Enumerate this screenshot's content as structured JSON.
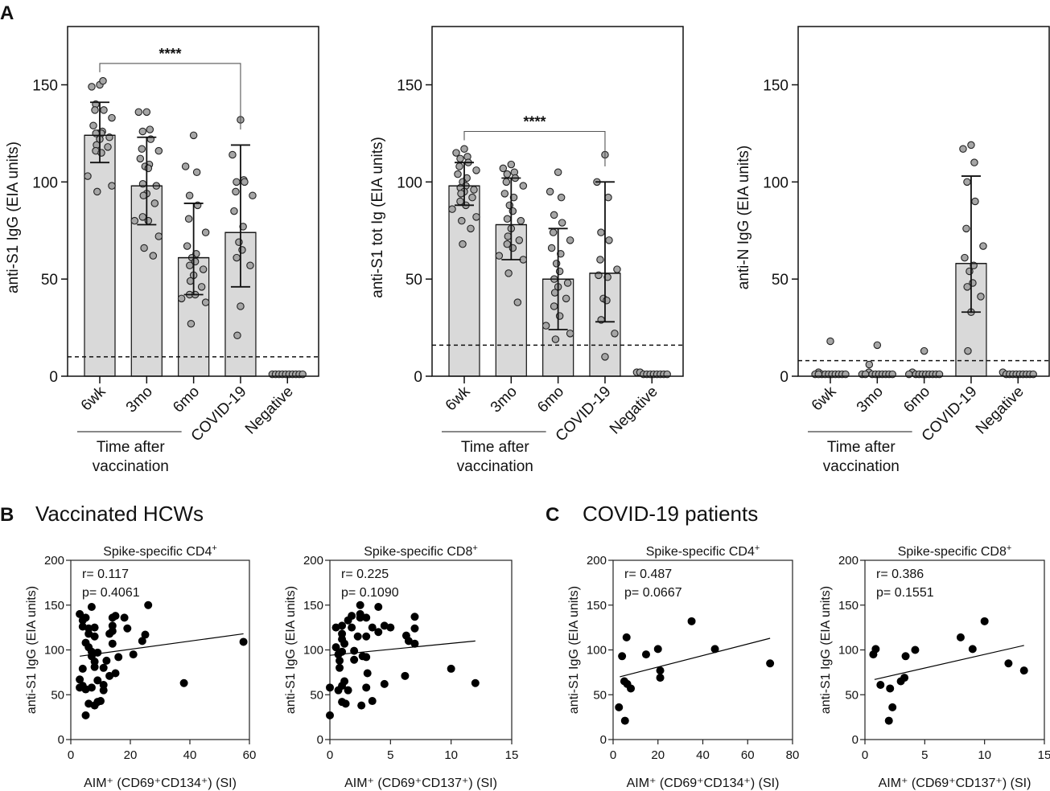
{
  "panel_labels": {
    "a": "A",
    "b": "B",
    "c": "C"
  },
  "panel_titles": {
    "b": "Vaccinated HCWs",
    "c": "COVID-19 patients"
  },
  "group_label_line1": "Time after",
  "group_label_line2": "vaccination",
  "colors": {
    "bar": "#d9d9d9",
    "dot": "#a6a6a6",
    "scatter_dot": "#000000",
    "line": "#000000"
  },
  "chart_data": [
    {
      "type": "bar",
      "ylabel": "anti-S1 IgG (EIA units)",
      "ylim": [
        0,
        180
      ],
      "yticks": [
        0,
        50,
        100,
        150
      ],
      "categories": [
        "6wk",
        "3mo",
        "6mo",
        "COVID-19",
        "Negative"
      ],
      "means": [
        124,
        98,
        61,
        74,
        1
      ],
      "error_low": [
        110,
        78,
        42,
        46,
        null
      ],
      "error_high": [
        141,
        123,
        89,
        119,
        null
      ],
      "cutoff": 10,
      "significance": {
        "from": "6wk",
        "to": "COVID-19",
        "label": "****"
      },
      "points": [
        [
          150,
          149,
          152,
          140,
          137,
          137,
          133,
          129,
          126,
          125,
          125,
          125,
          123,
          122,
          119,
          118,
          116,
          115,
          103,
          98,
          95
        ],
        [
          136,
          136,
          127,
          126,
          122,
          117,
          116,
          112,
          109,
          108,
          107,
          99,
          98,
          94,
          93,
          89,
          82,
          80,
          80,
          72,
          66,
          62
        ],
        [
          124,
          108,
          105,
          93,
          88,
          81,
          74,
          67,
          63,
          61,
          59,
          57,
          55,
          52,
          49,
          46,
          42,
          42,
          40,
          38,
          27
        ],
        [
          132,
          114,
          101,
          100,
          100,
          95,
          93,
          85,
          77,
          69,
          65,
          61,
          57,
          36,
          21
        ],
        [
          1,
          1,
          1,
          1,
          1,
          1,
          1,
          1,
          1,
          1
        ]
      ]
    },
    {
      "type": "bar",
      "ylabel": "anti-S1 tot Ig (EIA units)",
      "ylim": [
        0,
        180
      ],
      "yticks": [
        0,
        50,
        100,
        150
      ],
      "categories": [
        "6wk",
        "3mo",
        "6mo",
        "COVID-19",
        "Negative"
      ],
      "means": [
        98,
        78,
        50,
        53,
        1
      ],
      "error_low": [
        88,
        60,
        24,
        28,
        null
      ],
      "error_high": [
        110,
        102,
        76,
        100,
        null
      ],
      "cutoff": 16,
      "significance": {
        "from": "6wk",
        "to": "COVID-19",
        "label": "****"
      },
      "points": [
        [
          117,
          115,
          113,
          112,
          110,
          108,
          106,
          104,
          102,
          100,
          98,
          97,
          96,
          95,
          94,
          92,
          90,
          88,
          86,
          82,
          80,
          76,
          68
        ],
        [
          109,
          107,
          105,
          104,
          102,
          100,
          98,
          94,
          92,
          88,
          85,
          81,
          80,
          76,
          72,
          70,
          68,
          66,
          62,
          60,
          53,
          38
        ],
        [
          105,
          95,
          92,
          83,
          79,
          74,
          70,
          66,
          63,
          58,
          54,
          50,
          48,
          46,
          43,
          40,
          36,
          31,
          26,
          22,
          19
        ],
        [
          114,
          100,
          92,
          74,
          70,
          60,
          55,
          52,
          51,
          40,
          39,
          29,
          22,
          10
        ],
        [
          2,
          2,
          1,
          1,
          1,
          1,
          1,
          1,
          1,
          1
        ]
      ]
    },
    {
      "type": "bar",
      "ylabel": "anti-N IgG (EIA units)",
      "ylim": [
        0,
        180
      ],
      "yticks": [
        0,
        50,
        100,
        150
      ],
      "categories": [
        "6wk",
        "3mo",
        "6mo",
        "COVID-19",
        "Negative"
      ],
      "means": [
        1,
        1,
        1,
        58,
        1
      ],
      "error_low": [
        null,
        null,
        null,
        33,
        null
      ],
      "error_high": [
        null,
        null,
        null,
        103,
        null
      ],
      "cutoff": 8,
      "significance": null,
      "points": [
        [
          18,
          2,
          1,
          1,
          1,
          1,
          1,
          1,
          1,
          1,
          1,
          1
        ],
        [
          16,
          6,
          2,
          1,
          1,
          1,
          1,
          1,
          1,
          1,
          1,
          1
        ],
        [
          13,
          2,
          1,
          1,
          1,
          1,
          1,
          1,
          1,
          1,
          1
        ],
        [
          119,
          117,
          110,
          100,
          90,
          76,
          67,
          61,
          57,
          54,
          48,
          46,
          41,
          33,
          13
        ],
        [
          2,
          1,
          1,
          1,
          1,
          1,
          1,
          1,
          1,
          1
        ]
      ]
    },
    {
      "type": "scatter",
      "title": "Spike-specific CD4",
      "title_sup": "+",
      "r_label": "r=  0.117",
      "p_label": "p= 0.4061",
      "xlabel": "AIM⁺ (CD69⁺CD134⁺) (SI)",
      "ylabel": "anti-S1 IgG (EIA units)",
      "xlim": [
        0,
        60
      ],
      "xticks": [
        0,
        20,
        40,
        60
      ],
      "ylim": [
        0,
        200
      ],
      "yticks": [
        0,
        50,
        100,
        150,
        200
      ],
      "fit": [
        [
          3,
          93
        ],
        [
          58,
          118
        ]
      ],
      "points": [
        [
          3,
          140
        ],
        [
          4,
          133
        ],
        [
          5,
          136
        ],
        [
          4,
          126
        ],
        [
          6,
          124
        ],
        [
          7,
          148
        ],
        [
          8,
          125
        ],
        [
          6,
          118
        ],
        [
          8,
          115
        ],
        [
          5,
          108
        ],
        [
          6,
          103
        ],
        [
          7,
          98
        ],
        [
          9,
          97
        ],
        [
          7,
          93
        ],
        [
          8,
          87
        ],
        [
          8,
          81
        ],
        [
          11,
          80
        ],
        [
          12,
          88
        ],
        [
          4,
          79
        ],
        [
          3,
          67
        ],
        [
          4,
          60
        ],
        [
          3,
          58
        ],
        [
          5,
          56
        ],
        [
          7,
          58
        ],
        [
          9,
          66
        ],
        [
          11,
          55
        ],
        [
          11,
          61
        ],
        [
          13,
          71
        ],
        [
          6,
          40
        ],
        [
          8,
          38
        ],
        [
          9,
          42
        ],
        [
          10,
          43
        ],
        [
          5,
          27
        ],
        [
          13,
          118
        ],
        [
          14,
          127
        ],
        [
          14,
          121
        ],
        [
          14,
          107
        ],
        [
          15,
          138
        ],
        [
          14,
          136
        ],
        [
          18,
          136
        ],
        [
          19,
          124
        ],
        [
          15,
          74
        ],
        [
          16,
          92
        ],
        [
          21,
          95
        ],
        [
          24,
          110
        ],
        [
          25,
          117
        ],
        [
          26,
          150
        ],
        [
          38,
          63
        ],
        [
          58,
          109
        ]
      ]
    },
    {
      "type": "scatter",
      "title": "Spike-specific CD8",
      "title_sup": "+",
      "r_label": "r=  0.225",
      "p_label": "p= 0.1090",
      "xlabel": "AIM⁺ (CD69⁺CD137⁺) (SI)",
      "ylabel": "anti-S1 IgG (EIA units)",
      "xlim": [
        0,
        15
      ],
      "xticks": [
        0,
        5,
        10,
        15
      ],
      "ylim": [
        0,
        200
      ],
      "yticks": [
        0,
        50,
        100,
        150,
        200
      ],
      "fit": [
        [
          0,
          94
        ],
        [
          12,
          110
        ]
      ],
      "points": [
        [
          0,
          27
        ],
        [
          0,
          58
        ],
        [
          0.5,
          125
        ],
        [
          0.5,
          103
        ],
        [
          0.7,
          95
        ],
        [
          0.8,
          88
        ],
        [
          0.8,
          80
        ],
        [
          0.7,
          55
        ],
        [
          1,
          127
        ],
        [
          1,
          118
        ],
        [
          1,
          112
        ],
        [
          1,
          98
        ],
        [
          1.2,
          107
        ],
        [
          1,
          60
        ],
        [
          1.2,
          65
        ],
        [
          1,
          42
        ],
        [
          1.3,
          40
        ],
        [
          1.5,
          55
        ],
        [
          1.5,
          133
        ],
        [
          1.8,
          138
        ],
        [
          1.8,
          125
        ],
        [
          2,
          99
        ],
        [
          2,
          89
        ],
        [
          2.3,
          115
        ],
        [
          2.5,
          150
        ],
        [
          2.5,
          140
        ],
        [
          2.5,
          136
        ],
        [
          2.7,
          93
        ],
        [
          3,
          136
        ],
        [
          3,
          115
        ],
        [
          3,
          92
        ],
        [
          3.1,
          74
        ],
        [
          3,
          58
        ],
        [
          2.6,
          38
        ],
        [
          3.5,
          43
        ],
        [
          3.5,
          125
        ],
        [
          4,
          120
        ],
        [
          4,
          148
        ],
        [
          4.5,
          127
        ],
        [
          5,
          125
        ],
        [
          4.5,
          62
        ],
        [
          6.3,
          116
        ],
        [
          6.5,
          110
        ],
        [
          7,
          107
        ],
        [
          7,
          124
        ],
        [
          7,
          137
        ],
        [
          6.2,
          71
        ],
        [
          10,
          79
        ],
        [
          12,
          63
        ]
      ]
    },
    {
      "type": "scatter",
      "title": "Spike-specific CD4",
      "title_sup": "+",
      "r_label": "r=  0.487",
      "p_label": "p= 0.0667",
      "xlabel": "AIM⁺ (CD69⁺CD134⁺) (SI)",
      "ylabel": "anti-S1 IgG (EIA units)",
      "xlim": [
        0,
        80
      ],
      "xticks": [
        0,
        20,
        40,
        60,
        80
      ],
      "ylim": [
        0,
        200
      ],
      "yticks": [
        0,
        50,
        100,
        150,
        200
      ],
      "fit": [
        [
          3,
          70
        ],
        [
          70,
          113
        ]
      ],
      "points": [
        [
          2.6,
          36
        ],
        [
          4,
          93
        ],
        [
          6,
          114
        ],
        [
          5,
          65
        ],
        [
          6.3,
          62
        ],
        [
          7.9,
          57
        ],
        [
          5.3,
          21
        ],
        [
          14.7,
          95
        ],
        [
          20,
          101
        ],
        [
          21,
          77
        ],
        [
          21,
          69
        ],
        [
          35,
          132
        ],
        [
          45.4,
          101
        ],
        [
          70,
          85
        ]
      ]
    },
    {
      "type": "scatter",
      "title": "Spike-specific CD8",
      "title_sup": "+",
      "r_label": "r=  0.386",
      "p_label": "p= 0.1551",
      "xlabel": "AIM⁺ (CD69⁺CD137⁺) (SI)",
      "ylabel": "anti-S1 IgG (EIA units)",
      "xlim": [
        0,
        15
      ],
      "xticks": [
        0,
        5,
        10,
        15
      ],
      "ylim": [
        0,
        200
      ],
      "yticks": [
        0,
        50,
        100,
        150,
        200
      ],
      "fit": [
        [
          0.8,
          67
        ],
        [
          13.3,
          105
        ]
      ],
      "points": [
        [
          0.7,
          95
        ],
        [
          0.9,
          101
        ],
        [
          1.3,
          61
        ],
        [
          2.1,
          57
        ],
        [
          2,
          21
        ],
        [
          2.3,
          36
        ],
        [
          3,
          65
        ],
        [
          3.3,
          69
        ],
        [
          3.4,
          93
        ],
        [
          4.2,
          100
        ],
        [
          8,
          114
        ],
        [
          9,
          101
        ],
        [
          10,
          132
        ],
        [
          12,
          85
        ],
        [
          13.3,
          77
        ]
      ]
    }
  ]
}
